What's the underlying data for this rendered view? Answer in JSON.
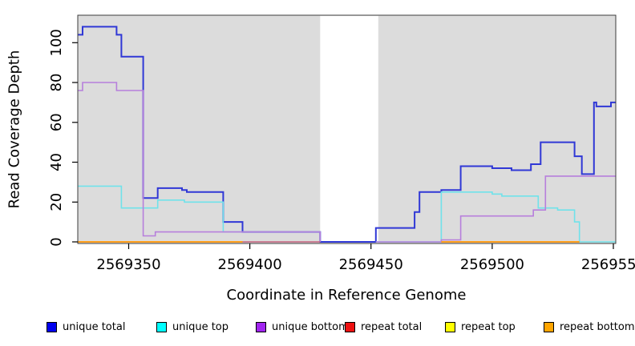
{
  "axes": {
    "xlabel": "Coordinate in Reference Genome",
    "ylabel": "Read Coverage Depth"
  },
  "chart_data": {
    "type": "line",
    "subtype": "step",
    "title": "",
    "xlabel": "Coordinate in Reference Genome",
    "ylabel": "Read Coverage Depth",
    "xlim": [
      2569329,
      2569551
    ],
    "ylim": [
      0,
      114
    ],
    "x_ticks": [
      2569350,
      2569400,
      2569450,
      2569500,
      2569550
    ],
    "y_ticks": [
      0,
      20,
      40,
      60,
      80,
      100
    ],
    "grid": false,
    "background": "#dcdcdc",
    "mask_region": {
      "x0": 2569429,
      "x1": 2569453,
      "color": "#ffffff"
    },
    "legend_position": "bottom",
    "series": [
      {
        "name": "unique total",
        "legend_color": "#0000ee",
        "line_color": "#3038d6",
        "width": 2,
        "segments": [
          [
            [
              2569329,
              104
            ],
            [
              2569331,
              108
            ],
            [
              2569345,
              104
            ],
            [
              2569347,
              93
            ],
            [
              2569356,
              22
            ],
            [
              2569362,
              27
            ],
            [
              2569372,
              26
            ],
            [
              2569374,
              25
            ],
            [
              2569389,
              10
            ],
            [
              2569397,
              5
            ],
            [
              2569429,
              0
            ],
            [
              2569452,
              7
            ],
            [
              2569468,
              15
            ],
            [
              2569470,
              25
            ],
            [
              2569479,
              26
            ],
            [
              2569487,
              38
            ],
            [
              2569500,
              37
            ],
            [
              2569508,
              36
            ],
            [
              2569516,
              39
            ],
            [
              2569520,
              50
            ],
            [
              2569534,
              43
            ],
            [
              2569537,
              34
            ],
            [
              2569542,
              70
            ],
            [
              2569543,
              68
            ],
            [
              2569549,
              70
            ],
            [
              2569551,
              70
            ]
          ]
        ]
      },
      {
        "name": "unique top",
        "legend_color": "#00ffff",
        "line_color": "#70e2ea",
        "width": 1.6,
        "segments": [
          [
            [
              2569329,
              28
            ],
            [
              2569347,
              17
            ],
            [
              2569362,
              21
            ],
            [
              2569373,
              20
            ],
            [
              2569389,
              5
            ],
            [
              2569429,
              0
            ]
          ],
          [
            [
              2569452,
              0
            ],
            [
              2569479,
              25
            ],
            [
              2569500,
              24
            ],
            [
              2569504,
              23
            ],
            [
              2569519,
              17
            ],
            [
              2569527,
              16
            ],
            [
              2569534,
              10
            ],
            [
              2569536,
              0
            ],
            [
              2569551,
              0
            ]
          ]
        ]
      },
      {
        "name": "unique bottom",
        "legend_color": "#a125f0",
        "line_color": "#b77fdc",
        "width": 1.6,
        "segments": [
          [
            [
              2569329,
              76
            ],
            [
              2569331,
              80
            ],
            [
              2569345,
              76
            ],
            [
              2569356,
              3
            ],
            [
              2569361,
              5
            ],
            [
              2569429,
              0
            ]
          ],
          [
            [
              2569452,
              0
            ],
            [
              2569479,
              1
            ],
            [
              2569487,
              13
            ],
            [
              2569517,
              16
            ],
            [
              2569522,
              33
            ],
            [
              2569551,
              33
            ]
          ]
        ]
      },
      {
        "name": "repeat total",
        "legend_color": "#ee1111",
        "line_color": "#c4607c",
        "width": 1.6,
        "segments": [
          [
            [
              2569397,
              0
            ],
            [
              2569429,
              0
            ]
          ]
        ]
      },
      {
        "name": "repeat top",
        "legend_color": "#ffff00",
        "line_color": "#f2f230",
        "width": 1.6,
        "segments": [
          [
            [
              2569329,
              0
            ],
            [
              2569397,
              0
            ]
          ]
        ]
      },
      {
        "name": "repeat bottom",
        "legend_color": "#ffa500",
        "line_color": "#ff9e1b",
        "width": 2,
        "segments": [
          [
            [
              2569329,
              0
            ],
            [
              2569397,
              0
            ]
          ],
          [
            [
              2569479,
              0
            ],
            [
              2569536,
              0
            ]
          ]
        ]
      }
    ]
  }
}
